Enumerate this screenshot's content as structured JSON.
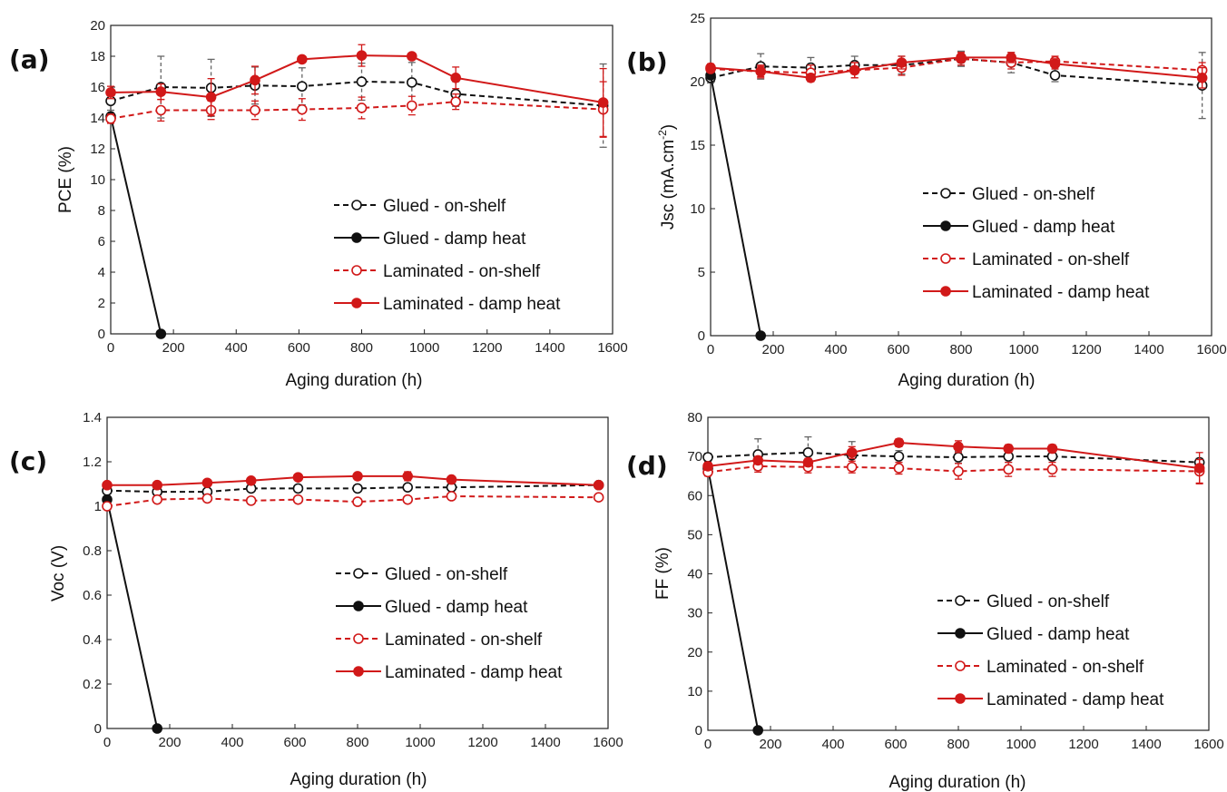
{
  "chart_data": [
    {
      "type": "line",
      "panel_label": "(a)",
      "xlabel": "Aging duration (h)",
      "ylabel": "PCE (%)",
      "ylabel_sup": "",
      "ylabel_tail": "",
      "xlim": [
        0,
        1600
      ],
      "ylim": [
        0,
        20
      ],
      "xticks": [
        0,
        200,
        400,
        600,
        800,
        1000,
        1200,
        1400,
        1600
      ],
      "yticks": [
        0,
        2,
        4,
        6,
        8,
        10,
        12,
        14,
        16,
        18,
        20
      ],
      "legend_position": "center-right",
      "series": [
        {
          "name": "Glued - on-shelf",
          "color": "#111111",
          "dashed": true,
          "filled": false,
          "x": [
            0,
            160,
            320,
            460,
            610,
            800,
            960,
            1100,
            1570
          ],
          "y": [
            15.1,
            16.0,
            15.95,
            16.1,
            16.05,
            16.35,
            16.3,
            15.55,
            14.8
          ],
          "err": [
            0.6,
            2.0,
            1.85,
            1.2,
            1.2,
            1.2,
            1.3,
            0.8,
            2.7
          ]
        },
        {
          "name": "Glued - damp heat",
          "color": "#111111",
          "dashed": false,
          "filled": true,
          "x": [
            0,
            160
          ],
          "y": [
            14.1,
            0
          ],
          "err": [
            0,
            0
          ]
        },
        {
          "name": "Laminated - on-shelf",
          "color": "#d11919",
          "dashed": true,
          "filled": false,
          "x": [
            0,
            160,
            320,
            460,
            610,
            800,
            960,
            1100,
            1570
          ],
          "y": [
            13.95,
            14.5,
            14.5,
            14.5,
            14.55,
            14.65,
            14.8,
            15.05,
            14.55
          ],
          "err": [
            0.3,
            0.7,
            0.6,
            0.6,
            0.7,
            0.7,
            0.6,
            0.5,
            1.8
          ]
        },
        {
          "name": "Laminated - damp heat",
          "color": "#d11919",
          "dashed": false,
          "filled": true,
          "x": [
            0,
            160,
            320,
            460,
            610,
            800,
            960,
            1100,
            1570
          ],
          "y": [
            15.65,
            15.7,
            15.35,
            16.45,
            17.8,
            18.05,
            18.0,
            16.6,
            15.0
          ],
          "err": [
            0.4,
            0.5,
            1.2,
            0.9,
            0.2,
            0.7,
            0.2,
            0.7,
            2.2
          ]
        }
      ]
    },
    {
      "type": "line",
      "panel_label": "(b)",
      "xlabel": "Aging duration (h)",
      "ylabel": "Jsc (mA.cm",
      "ylabel_sup": "-2",
      "ylabel_tail": ")",
      "xlim": [
        0,
        1600
      ],
      "ylim": [
        0,
        25
      ],
      "xticks": [
        0,
        200,
        400,
        600,
        800,
        1000,
        1200,
        1400,
        1600
      ],
      "yticks": [
        0,
        5,
        10,
        15,
        20,
        25
      ],
      "legend_position": "center-right",
      "series": [
        {
          "name": "Glued - on-shelf",
          "color": "#111111",
          "dashed": true,
          "filled": false,
          "x": [
            0,
            160,
            320,
            460,
            610,
            800,
            960,
            1100,
            1570
          ],
          "y": [
            20.3,
            21.2,
            21.1,
            21.3,
            21.3,
            21.8,
            21.5,
            20.5,
            19.7
          ],
          "err": [
            0.4,
            1.0,
            0.8,
            0.7,
            0.7,
            0.6,
            0.8,
            0.5,
            2.6
          ]
        },
        {
          "name": "Glued - damp heat",
          "color": "#111111",
          "dashed": false,
          "filled": true,
          "x": [
            0,
            160
          ],
          "y": [
            20.5,
            0
          ],
          "err": [
            0,
            0
          ]
        },
        {
          "name": "Laminated - on-shelf",
          "color": "#d11919",
          "dashed": true,
          "filled": false,
          "x": [
            0,
            160,
            320,
            460,
            610,
            800,
            960,
            1100,
            1570
          ],
          "y": [
            21.0,
            20.8,
            20.7,
            20.9,
            21.1,
            21.8,
            21.5,
            21.6,
            20.9
          ],
          "err": [
            0.2,
            0.5,
            0.6,
            0.6,
            0.6,
            0.5,
            0.5,
            0.4,
            0.6
          ]
        },
        {
          "name": "Laminated - damp heat",
          "color": "#d11919",
          "dashed": false,
          "filled": true,
          "x": [
            0,
            160,
            320,
            460,
            610,
            800,
            960,
            1100,
            1570
          ],
          "y": [
            21.1,
            20.8,
            20.3,
            20.9,
            21.5,
            21.9,
            21.9,
            21.4,
            20.3
          ],
          "err": [
            0.3,
            0.4,
            0.3,
            0.6,
            0.5,
            0.4,
            0.4,
            0.4,
            0.8
          ]
        }
      ]
    },
    {
      "type": "line",
      "panel_label": "(c)",
      "xlabel": "Aging duration (h)",
      "ylabel": "Voc (V)",
      "ylabel_sup": "",
      "ylabel_tail": "",
      "xlim": [
        0,
        1600
      ],
      "ylim": [
        0,
        1.4
      ],
      "xticks": [
        0,
        200,
        400,
        600,
        800,
        1000,
        1200,
        1400,
        1600
      ],
      "yticks": [
        0,
        0.2,
        0.4,
        0.6,
        0.8,
        1,
        1.2,
        1.4
      ],
      "legend_position": "center-right",
      "series": [
        {
          "name": "Glued - on-shelf",
          "color": "#111111",
          "dashed": true,
          "filled": false,
          "x": [
            0,
            160,
            320,
            460,
            610,
            800,
            960,
            1100,
            1570
          ],
          "y": [
            1.07,
            1.065,
            1.065,
            1.08,
            1.08,
            1.08,
            1.085,
            1.085,
            1.095
          ],
          "err": [
            0.01,
            0.01,
            0.01,
            0.01,
            0.01,
            0.01,
            0.01,
            0.01,
            0.01
          ]
        },
        {
          "name": "Glued - damp heat",
          "color": "#111111",
          "dashed": false,
          "filled": true,
          "x": [
            0,
            160
          ],
          "y": [
            1.03,
            0
          ],
          "err": [
            0,
            0
          ]
        },
        {
          "name": "Laminated - on-shelf",
          "color": "#d11919",
          "dashed": true,
          "filled": false,
          "x": [
            0,
            160,
            320,
            460,
            610,
            800,
            960,
            1100,
            1570
          ],
          "y": [
            1.0,
            1.03,
            1.035,
            1.025,
            1.03,
            1.02,
            1.03,
            1.045,
            1.04
          ],
          "err": [
            0.01,
            0.01,
            0.01,
            0.01,
            0.01,
            0.01,
            0.01,
            0.01,
            0.01
          ]
        },
        {
          "name": "Laminated - damp heat",
          "color": "#d11919",
          "dashed": false,
          "filled": true,
          "x": [
            0,
            160,
            320,
            460,
            610,
            800,
            960,
            1100,
            1570
          ],
          "y": [
            1.095,
            1.095,
            1.105,
            1.115,
            1.13,
            1.135,
            1.135,
            1.12,
            1.095
          ],
          "err": [
            0.01,
            0.01,
            0.01,
            0.01,
            0.01,
            0.015,
            0.02,
            0.01,
            0.01
          ]
        }
      ]
    },
    {
      "type": "line",
      "panel_label": "(d)",
      "xlabel": "Aging duration (h)",
      "ylabel": "FF (%)",
      "ylabel_sup": "",
      "ylabel_tail": "",
      "xlim": [
        0,
        1600
      ],
      "ylim": [
        0,
        80
      ],
      "xticks": [
        0,
        200,
        400,
        600,
        800,
        1000,
        1200,
        1400,
        1600
      ],
      "yticks": [
        0,
        10,
        20,
        30,
        40,
        50,
        60,
        70,
        80
      ],
      "legend_position": "center-right",
      "series": [
        {
          "name": "Glued - on-shelf",
          "color": "#111111",
          "dashed": true,
          "filled": false,
          "x": [
            0,
            160,
            320,
            460,
            610,
            800,
            960,
            1100,
            1570
          ],
          "y": [
            69.8,
            70.5,
            71.0,
            70.3,
            70.0,
            69.8,
            70.0,
            70.0,
            68.5
          ],
          "err": [
            1.0,
            4.0,
            4.0,
            3.5,
            1.5,
            1.5,
            1.5,
            1.0,
            1.0
          ]
        },
        {
          "name": "Glued - damp heat",
          "color": "#111111",
          "dashed": false,
          "filled": true,
          "x": [
            0,
            160
          ],
          "y": [
            67.0,
            0
          ],
          "err": [
            0,
            0
          ]
        },
        {
          "name": "Laminated - on-shelf",
          "color": "#d11919",
          "dashed": true,
          "filled": false,
          "x": [
            0,
            160,
            320,
            460,
            610,
            800,
            960,
            1100,
            1570
          ],
          "y": [
            66.0,
            67.5,
            67.3,
            67.3,
            67.0,
            66.2,
            66.7,
            66.7,
            66.2
          ],
          "err": [
            1.0,
            1.5,
            1.5,
            1.5,
            1.5,
            2.0,
            1.8,
            1.8,
            3.0
          ]
        },
        {
          "name": "Laminated - damp heat",
          "color": "#d11919",
          "dashed": false,
          "filled": true,
          "x": [
            0,
            160,
            320,
            460,
            610,
            800,
            960,
            1100,
            1570
          ],
          "y": [
            67.5,
            69.0,
            68.5,
            71.0,
            73.5,
            72.5,
            72.0,
            72.0,
            67.0
          ],
          "err": [
            1.0,
            1.0,
            1.0,
            1.5,
            1.0,
            1.5,
            1.0,
            1.0,
            4.0
          ]
        }
      ]
    }
  ]
}
